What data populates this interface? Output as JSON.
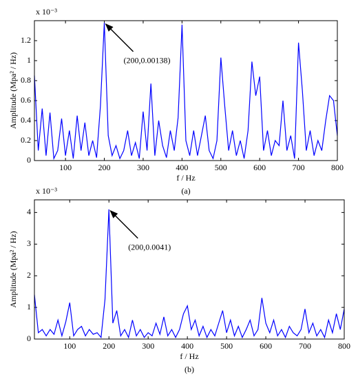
{
  "chart_data": [
    {
      "type": "line",
      "caption": "(a)",
      "xlabel": "f / Hz",
      "ylabel": "Amplitude (Mpa² / Hz)",
      "y_scale_label": "x 10⁻³",
      "color": "#0000ff",
      "xlim": [
        20,
        800
      ],
      "xticks": [
        100,
        200,
        300,
        400,
        500,
        600,
        700,
        800
      ],
      "ylim": [
        0,
        1.4
      ],
      "yticks": [
        0,
        0.2,
        0.4,
        0.6,
        0.8,
        1,
        1.2
      ],
      "x": [
        20,
        30,
        40,
        50,
        60,
        70,
        80,
        90,
        100,
        110,
        120,
        130,
        140,
        150,
        160,
        170,
        180,
        190,
        200,
        210,
        220,
        230,
        240,
        250,
        260,
        270,
        280,
        290,
        300,
        310,
        320,
        330,
        340,
        350,
        360,
        370,
        380,
        390,
        400,
        410,
        420,
        430,
        440,
        450,
        460,
        470,
        480,
        490,
        500,
        510,
        520,
        530,
        540,
        550,
        560,
        570,
        580,
        590,
        600,
        610,
        620,
        630,
        640,
        650,
        660,
        670,
        680,
        690,
        700,
        710,
        720,
        730,
        740,
        750,
        760,
        770,
        780,
        790,
        800
      ],
      "values": [
        0.85,
        0.1,
        0.52,
        0.05,
        0.48,
        0.02,
        0.1,
        0.42,
        0.05,
        0.3,
        0.02,
        0.45,
        0.1,
        0.38,
        0.05,
        0.2,
        0.03,
        0.55,
        1.38,
        0.25,
        0.05,
        0.15,
        0.02,
        0.1,
        0.3,
        0.05,
        0.18,
        0.02,
        0.49,
        0.1,
        0.77,
        0.05,
        0.4,
        0.15,
        0.03,
        0.3,
        0.1,
        0.43,
        1.36,
        0.2,
        0.05,
        0.3,
        0.05,
        0.25,
        0.45,
        0.1,
        0.02,
        0.2,
        1.03,
        0.55,
        0.1,
        0.3,
        0.05,
        0.2,
        0.02,
        0.3,
        0.99,
        0.65,
        0.84,
        0.1,
        0.3,
        0.05,
        0.2,
        0.15,
        0.6,
        0.1,
        0.25,
        0.02,
        1.18,
        0.7,
        0.1,
        0.3,
        0.05,
        0.2,
        0.1,
        0.4,
        0.65,
        0.6,
        0.25
      ],
      "annotation": {
        "text": "(200,0.00138)",
        "xy": [
          200,
          1.38
        ]
      }
    },
    {
      "type": "line",
      "caption": "(b)",
      "xlabel": "f / Hz",
      "ylabel": "Amplitude (Mpa² / Hz)",
      "y_scale_label": "x 10⁻³",
      "color": "#0000ff",
      "xlim": [
        10,
        800
      ],
      "xticks": [
        100,
        200,
        300,
        400,
        500,
        600,
        700,
        800
      ],
      "ylim": [
        0,
        4.4
      ],
      "yticks": [
        0,
        1,
        2,
        3,
        4
      ],
      "x": [
        10,
        20,
        30,
        40,
        50,
        60,
        70,
        80,
        90,
        100,
        110,
        120,
        130,
        140,
        150,
        160,
        170,
        180,
        190,
        200,
        210,
        220,
        230,
        240,
        250,
        260,
        270,
        280,
        290,
        300,
        310,
        320,
        330,
        340,
        350,
        360,
        370,
        380,
        390,
        400,
        410,
        420,
        430,
        440,
        450,
        460,
        470,
        480,
        490,
        500,
        510,
        520,
        530,
        540,
        550,
        560,
        570,
        580,
        590,
        600,
        610,
        620,
        630,
        640,
        650,
        660,
        670,
        680,
        690,
        700,
        710,
        720,
        730,
        740,
        750,
        760,
        770,
        780,
        790,
        800
      ],
      "values": [
        1.4,
        0.2,
        0.3,
        0.1,
        0.3,
        0.15,
        0.6,
        0.1,
        0.55,
        1.15,
        0.1,
        0.3,
        0.4,
        0.1,
        0.3,
        0.15,
        0.2,
        0.05,
        1.25,
        4.1,
        0.5,
        0.9,
        0.1,
        0.3,
        0.05,
        0.6,
        0.1,
        0.3,
        0.05,
        0.2,
        0.1,
        0.5,
        0.15,
        0.7,
        0.1,
        0.3,
        0.05,
        0.3,
        0.8,
        1.05,
        0.3,
        0.6,
        0.1,
        0.4,
        0.05,
        0.3,
        0.1,
        0.5,
        0.9,
        0.2,
        0.6,
        0.1,
        0.4,
        0.05,
        0.3,
        0.6,
        0.1,
        0.3,
        1.3,
        0.5,
        0.2,
        0.6,
        0.1,
        0.3,
        0.05,
        0.4,
        0.2,
        0.1,
        0.3,
        0.95,
        0.2,
        0.5,
        0.1,
        0.3,
        0.05,
        0.6,
        0.2,
        0.8,
        0.3,
        0.95
      ],
      "annotation": {
        "text": "(200,0.0041)",
        "xy": [
          200,
          4.1
        ]
      }
    }
  ]
}
